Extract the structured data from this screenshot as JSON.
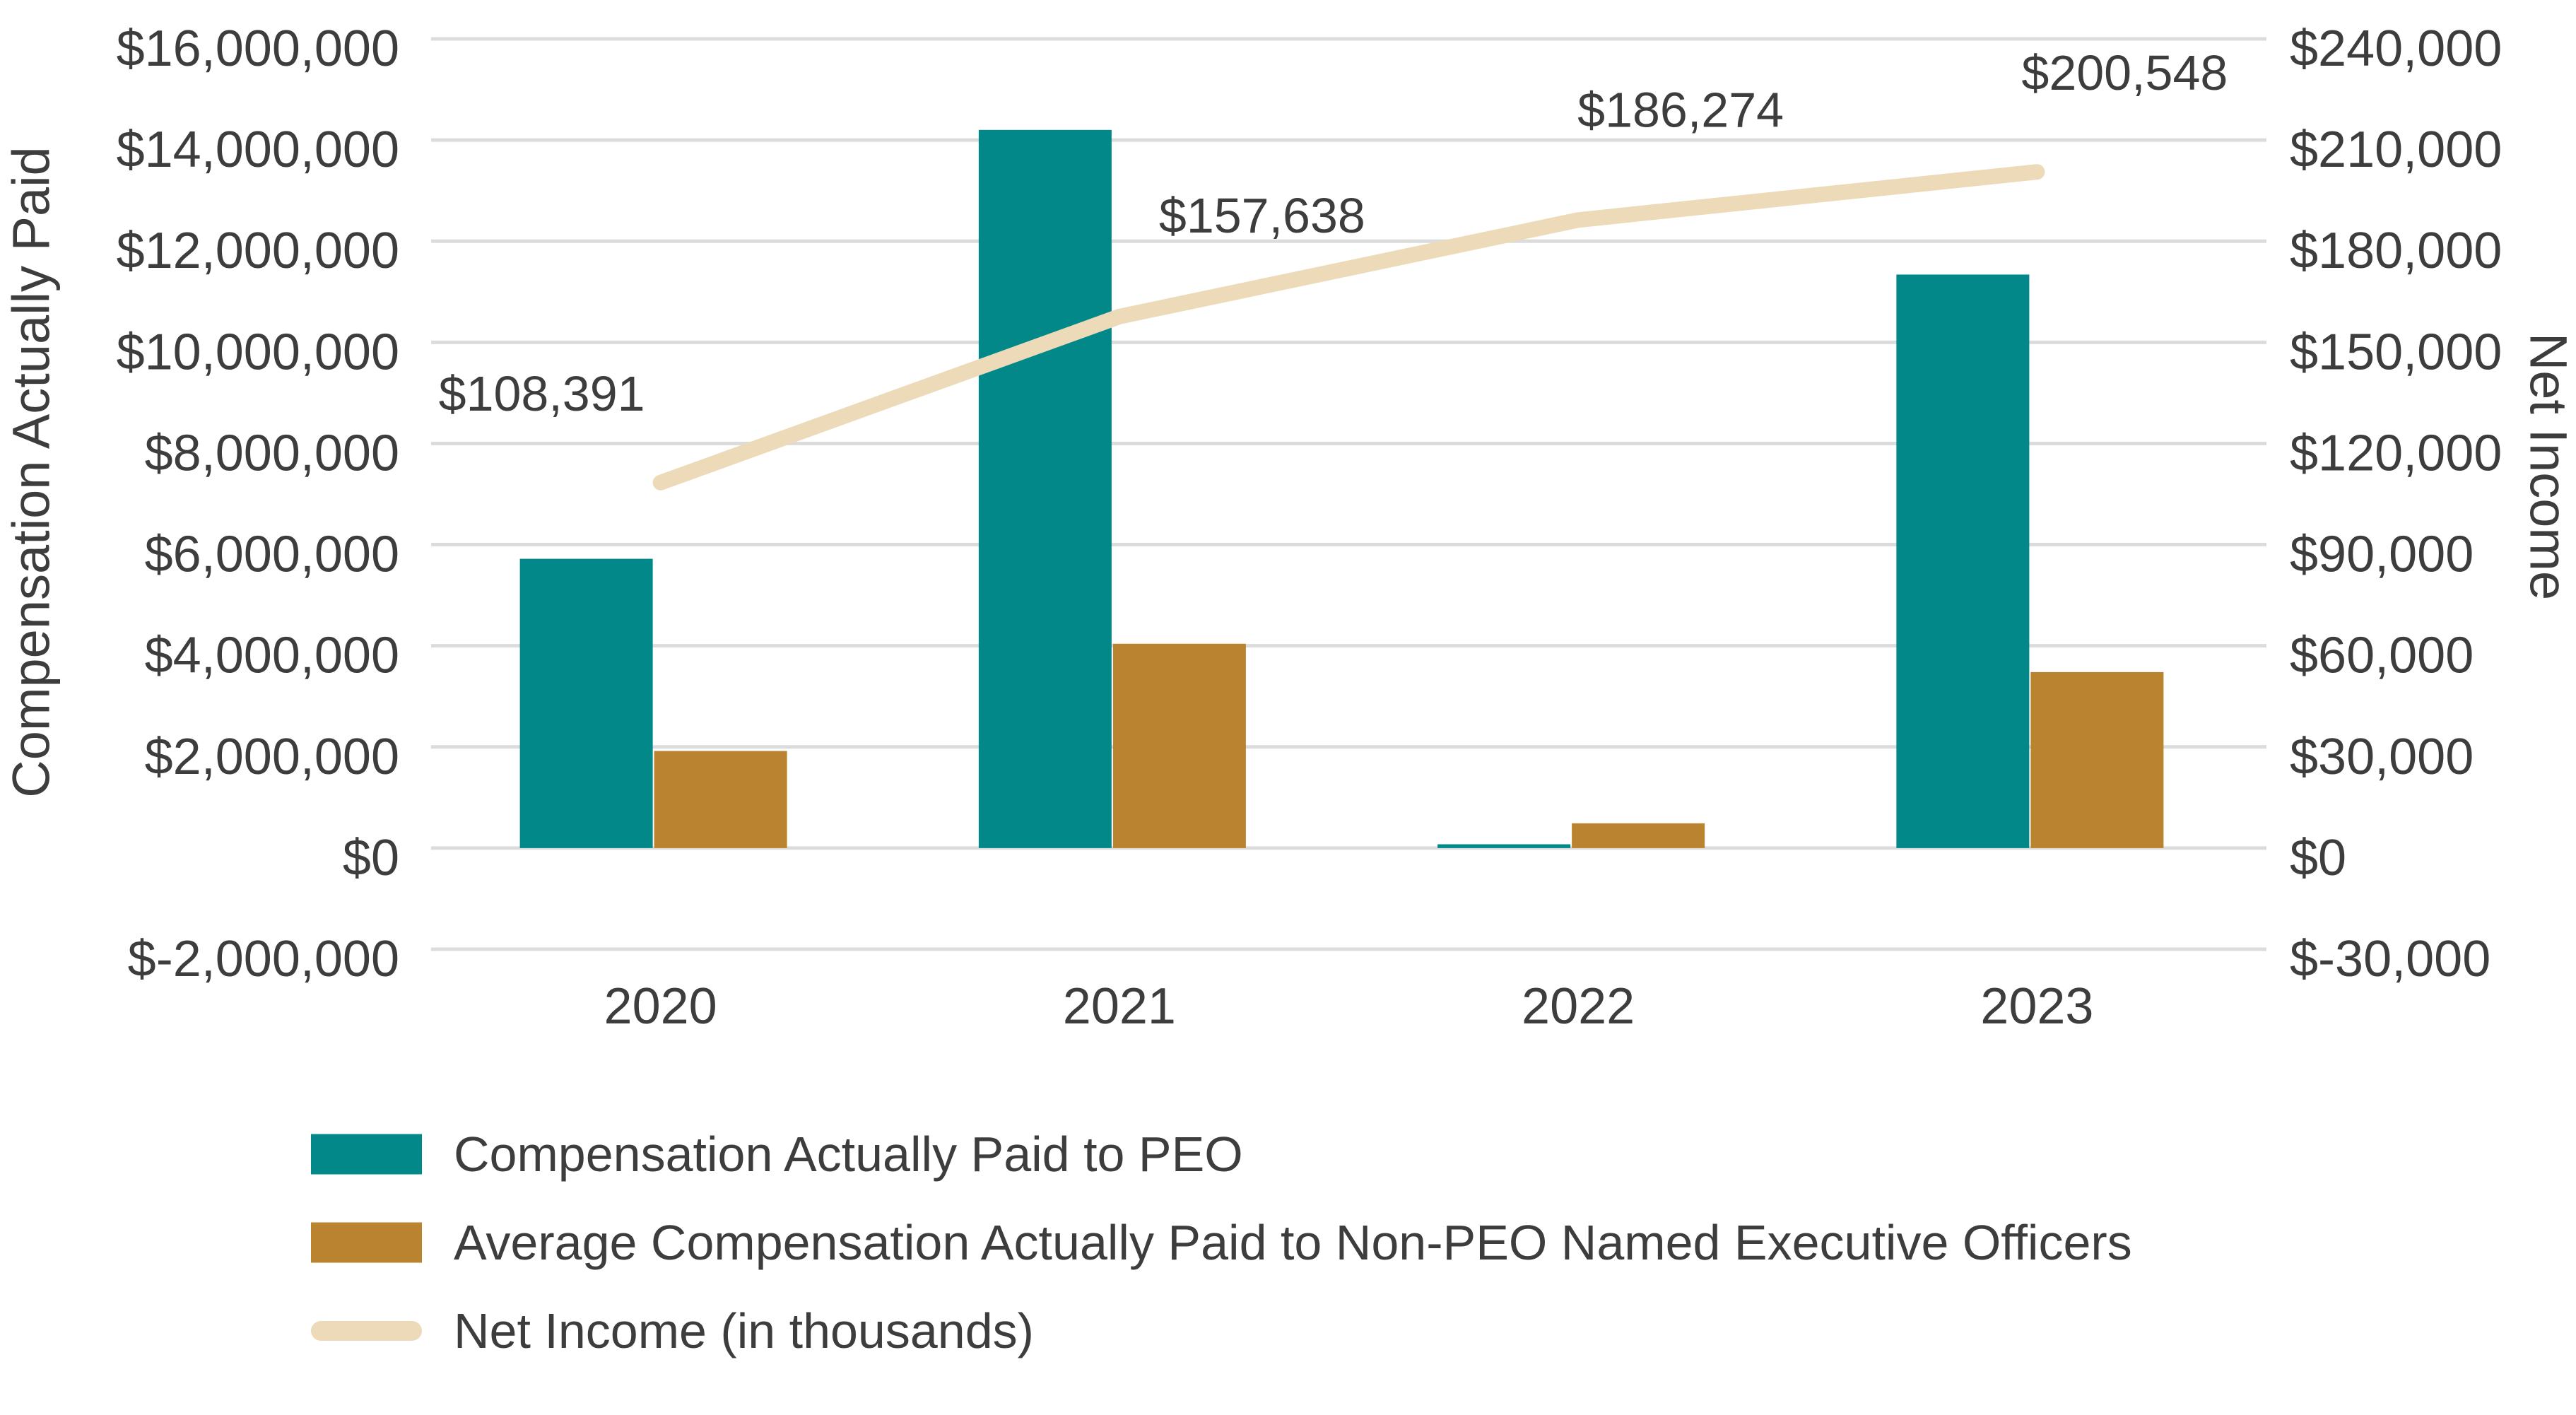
{
  "chart_data": {
    "type": "bar",
    "subtype": "combo-bar-line-dual-axis",
    "categories": [
      "2020",
      "2021",
      "2022",
      "2023"
    ],
    "series": [
      {
        "key": "peo-cap",
        "name": "Compensation Actually Paid to PEO",
        "type": "bar",
        "axis": "left",
        "color": "#028889",
        "values": [
          5720000,
          14200000,
          75000,
          11340000
        ]
      },
      {
        "key": "nonpeo-cap",
        "name": "Average Compensation Actually Paid to Non-PEO Named Executive Officers",
        "type": "bar",
        "axis": "left",
        "color": "#B9832F",
        "values": [
          1920000,
          4040000,
          490000,
          3480000
        ]
      },
      {
        "key": "net-income",
        "name": "Net Income (in thousands)",
        "type": "line",
        "axis": "right",
        "color": "#ECDAB9",
        "values": [
          108391,
          157638,
          186274,
          200548
        ],
        "data_labels": [
          "$108,391",
          "$157,638",
          "$186,274",
          "$200,548"
        ]
      }
    ],
    "left_axis": {
      "title": "Compensation Actually Paid",
      "min": -2000000,
      "max": 16000000,
      "step": 2000000,
      "tick_labels": [
        "$16,000,000",
        "$14,000,000",
        "$12,000,000",
        "$10,000,000",
        "$8,000,000",
        "$6,000,000",
        "$4,000,000",
        "$2,000,000",
        "$0",
        "$-2,000,000"
      ]
    },
    "right_axis": {
      "title": "Net Income",
      "min": -30000,
      "max": 240000,
      "step": 30000,
      "tick_labels": [
        "$240,000",
        "$210,000",
        "$180,000",
        "$150,000",
        "$120,000",
        "$90,000",
        "$60,000",
        "$30,000",
        "$0",
        "$-30,000"
      ]
    },
    "grid": true,
    "legend_position": "bottom-left"
  },
  "colors": {
    "background": "#FFFFFF",
    "gridline": "#DCDCDC",
    "text": "#3D3D3D",
    "bar_peo": "#028889",
    "bar_nonpeo": "#B9832F",
    "line_net_income": "#ECDAB9"
  }
}
